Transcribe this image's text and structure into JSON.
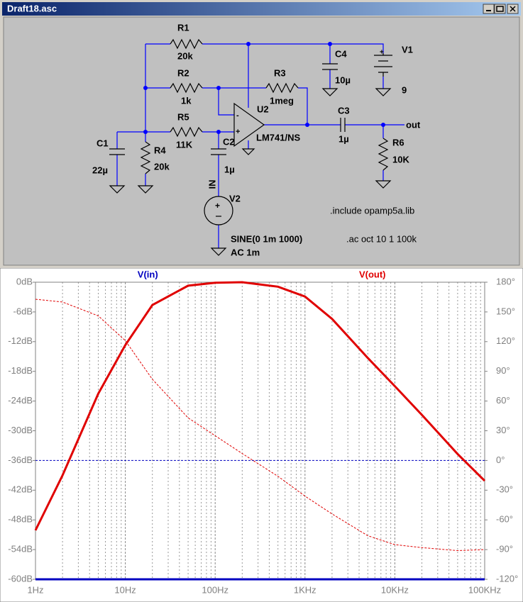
{
  "window": {
    "title": "Draft18.asc"
  },
  "schematic": {
    "components": [
      {
        "ref": "R1",
        "value": "20k"
      },
      {
        "ref": "R2",
        "value": "1k"
      },
      {
        "ref": "R3",
        "value": "1meg"
      },
      {
        "ref": "R5",
        "value": "11K"
      },
      {
        "ref": "C1",
        "value": "22µ"
      },
      {
        "ref": "R4",
        "value": "20k"
      },
      {
        "ref": "C2",
        "value": "1µ"
      },
      {
        "ref": "U2",
        "value": "LM741/NS"
      },
      {
        "ref": "C3",
        "value": "1µ"
      },
      {
        "ref": "C4",
        "value": "10µ"
      },
      {
        "ref": "V1",
        "value": "9"
      },
      {
        "ref": "R6",
        "value": "10K"
      },
      {
        "ref": "V2",
        "value": "SINE(0 1m 1000)",
        "ac": "AC 1m"
      }
    ],
    "net_labels": [
      "out",
      "IN"
    ],
    "directives": [
      ".include opamp5a.lib",
      ".ac oct 10 1 100k"
    ]
  },
  "chart_data": {
    "type": "line",
    "xlog": true,
    "x": [
      1,
      2,
      5,
      10,
      20,
      50,
      100,
      200,
      500,
      1000,
      2000,
      5000,
      10000,
      20000,
      50000,
      100000
    ],
    "xlim": [
      1,
      100000
    ],
    "xticks": [
      {
        "value": 1,
        "label": "1Hz"
      },
      {
        "value": 10,
        "label": "10Hz"
      },
      {
        "value": 100,
        "label": "100Hz"
      },
      {
        "value": 1000,
        "label": "1KHz"
      },
      {
        "value": 10000,
        "label": "10KHz"
      },
      {
        "value": 100000,
        "label": "100KHz"
      }
    ],
    "xminor": [
      2,
      3,
      4,
      5,
      6,
      7,
      8,
      9,
      20,
      30,
      40,
      50,
      60,
      70,
      80,
      90,
      200,
      300,
      400,
      500,
      600,
      700,
      800,
      900,
      2000,
      3000,
      4000,
      5000,
      6000,
      7000,
      8000,
      9000,
      20000,
      30000,
      40000,
      50000,
      60000,
      70000,
      80000,
      90000
    ],
    "ylim": [
      -60,
      0
    ],
    "yticks": [
      {
        "value": 0,
        "label": "0dB"
      },
      {
        "value": -6,
        "label": "-6dB"
      },
      {
        "value": -12,
        "label": "-12dB"
      },
      {
        "value": -18,
        "label": "-18dB"
      },
      {
        "value": -24,
        "label": "-24dB"
      },
      {
        "value": -30,
        "label": "-30dB"
      },
      {
        "value": -36,
        "label": "-36dB"
      },
      {
        "value": -42,
        "label": "-42dB"
      },
      {
        "value": -48,
        "label": "-48dB"
      },
      {
        "value": -54,
        "label": "-54dB"
      },
      {
        "value": -60,
        "label": "-60dB"
      }
    ],
    "y2lim": [
      -120,
      180
    ],
    "y2ticks": [
      {
        "value": 180,
        "label": "180°"
      },
      {
        "value": 150,
        "label": "150°"
      },
      {
        "value": 120,
        "label": "120°"
      },
      {
        "value": 90,
        "label": "90°"
      },
      {
        "value": 60,
        "label": "60°"
      },
      {
        "value": 30,
        "label": "30°"
      },
      {
        "value": 0,
        "label": "0°"
      },
      {
        "value": -30,
        "label": "-30°"
      },
      {
        "value": -60,
        "label": "-60°"
      },
      {
        "value": -90,
        "label": "-90°"
      },
      {
        "value": -120,
        "label": "-120°"
      }
    ],
    "grid": "x",
    "series": [
      {
        "name": "V(in)",
        "color": "#0000c0",
        "values": [
          -60,
          -60,
          -60,
          -60,
          -60,
          -60,
          -60,
          -60,
          -60,
          -60,
          -60,
          -60,
          -60,
          -60,
          -60,
          -60
        ],
        "phase": [
          0,
          0,
          0,
          0,
          0,
          0,
          0,
          0,
          0,
          0,
          0,
          0,
          0,
          0,
          0,
          0
        ]
      },
      {
        "name": "V(out)",
        "color": "#e00000",
        "values": [
          -50.1,
          -39,
          -22.5,
          -12.7,
          -4.6,
          -0.7,
          -0.1,
          0,
          -0.9,
          -2.9,
          -7.4,
          -15.3,
          -21,
          -26.8,
          -34.7,
          -40.1
        ],
        "phase": [
          162.8,
          160,
          146,
          121,
          82,
          43,
          25,
          7,
          -16,
          -36,
          -54,
          -76,
          -85,
          -88,
          -91,
          -90
        ]
      }
    ]
  }
}
